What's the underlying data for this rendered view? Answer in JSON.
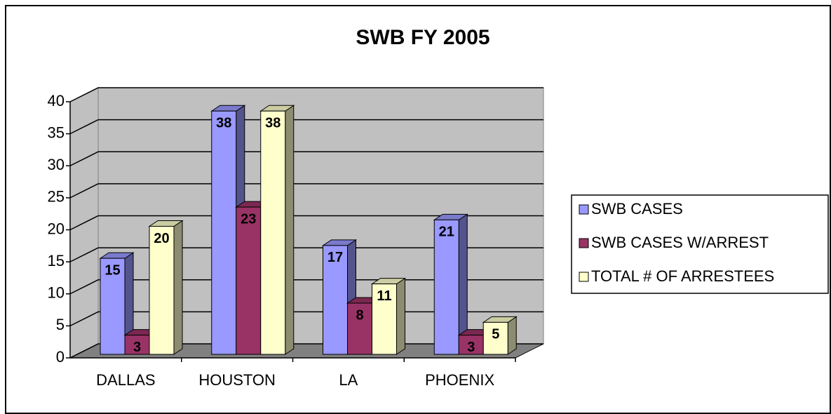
{
  "chart_data": {
    "type": "bar3d",
    "title": "SWB FY 2005",
    "categories": [
      "DALLAS",
      "HOUSTON",
      "LA",
      "PHOENIX"
    ],
    "series": [
      {
        "name": "SWB CASES",
        "color": "#9999ff",
        "values": [
          15,
          38,
          17,
          21
        ]
      },
      {
        "name": "SWB CASES W/ARREST",
        "color": "#993366",
        "values": [
          3,
          23,
          8,
          3
        ]
      },
      {
        "name": "TOTAL # OF ARRESTEES",
        "color": "#ffffcc",
        "values": [
          20,
          38,
          11,
          5
        ]
      }
    ],
    "ylim": [
      0,
      40
    ],
    "yticks": [
      0,
      5,
      10,
      15,
      20,
      25,
      30,
      35,
      40
    ],
    "grid": true,
    "legend": "right"
  }
}
